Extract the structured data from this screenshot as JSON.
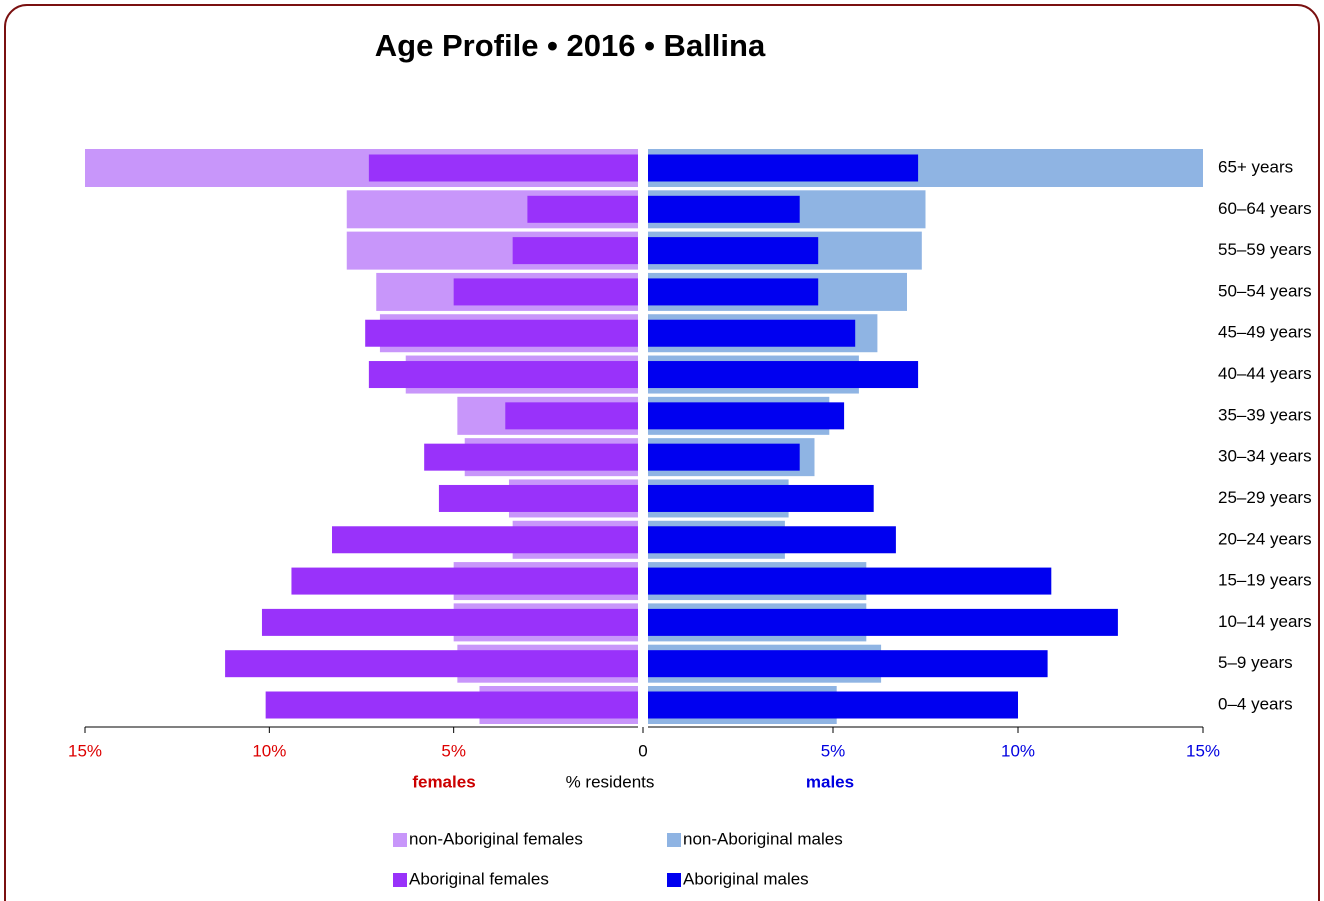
{
  "chart_data": {
    "type": "pyramid",
    "title": "Age Profile  •  2016  •  Ballina",
    "categories": [
      "65+ years",
      "60–64 years",
      "55–59 years",
      "50–54 years",
      "45–49 years",
      "40–44 years",
      "35–39 years",
      "30–34 years",
      "25–29 years",
      "20–24 years",
      "15–19 years",
      "10–14 years",
      "5–9 years",
      "0–4 years"
    ],
    "series": [
      {
        "name": "non-Aboriginal females",
        "color": "#c896fa",
        "side": "left",
        "values": [
          15.0,
          7.9,
          7.9,
          7.1,
          7.0,
          6.3,
          4.9,
          4.7,
          3.5,
          3.4,
          5.0,
          5.0,
          4.9,
          4.3
        ]
      },
      {
        "name": "non-Aboriginal males",
        "color": "#8fb4e3",
        "side": "right",
        "values": [
          15.0,
          7.5,
          7.4,
          7.0,
          6.2,
          5.7,
          4.9,
          4.5,
          3.8,
          3.7,
          5.9,
          5.9,
          6.3,
          5.1
        ]
      },
      {
        "name": "Aboriginal females",
        "color": "#9932fa",
        "side": "left",
        "values": [
          7.3,
          3.0,
          3.4,
          5.0,
          7.4,
          7.3,
          3.6,
          5.8,
          5.4,
          8.3,
          9.4,
          10.2,
          11.2,
          10.1
        ]
      },
      {
        "name": "Aboriginal males",
        "color": "#0000f0",
        "side": "right",
        "values": [
          7.3,
          4.1,
          4.6,
          4.6,
          5.6,
          7.3,
          5.3,
          4.1,
          6.1,
          6.7,
          10.9,
          12.7,
          10.8,
          10.0
        ]
      }
    ],
    "xlim": [
      0,
      15
    ],
    "female_xticks": [
      {
        "value": 15,
        "label": "15%"
      },
      {
        "value": 10,
        "label": "10%"
      },
      {
        "value": 5,
        "label": "5%"
      }
    ],
    "male_xticks": [
      0,
      {
        "value": 5,
        "label": "5%"
      },
      {
        "value": 10,
        "label": "10%"
      },
      {
        "value": 15,
        "label": "15%"
      }
    ],
    "female_label": "females",
    "x_label": "% residents",
    "male_label": "males"
  }
}
